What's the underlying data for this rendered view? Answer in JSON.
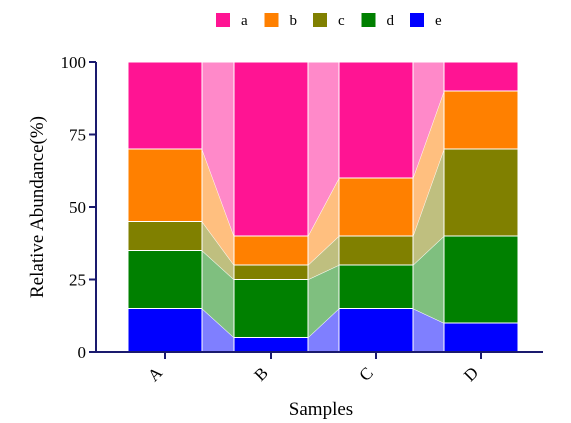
{
  "chart_data": {
    "type": "bar",
    "stacked": true,
    "show_connectors": true,
    "categories": [
      "A",
      "B",
      "C",
      "D"
    ],
    "series": [
      {
        "name": "e",
        "color": "#0000ff",
        "values": [
          15,
          5,
          15,
          10
        ]
      },
      {
        "name": "d",
        "color": "#008000",
        "values": [
          20,
          20,
          15,
          30
        ]
      },
      {
        "name": "c",
        "color": "#808000",
        "values": [
          10,
          5,
          10,
          30
        ]
      },
      {
        "name": "b",
        "color": "#ff8000",
        "values": [
          25,
          10,
          20,
          20
        ]
      },
      {
        "name": "a",
        "color": "#ff1493",
        "values": [
          30,
          60,
          40,
          10
        ]
      }
    ],
    "legend_order": [
      "a",
      "b",
      "c",
      "d",
      "e"
    ],
    "legend_position": "top",
    "xlabel": "Samples",
    "ylabel": "Relative Abundance(%)",
    "ylim": [
      0,
      100
    ],
    "yticks": [
      0,
      25,
      50,
      75,
      100
    ],
    "grid": false
  }
}
